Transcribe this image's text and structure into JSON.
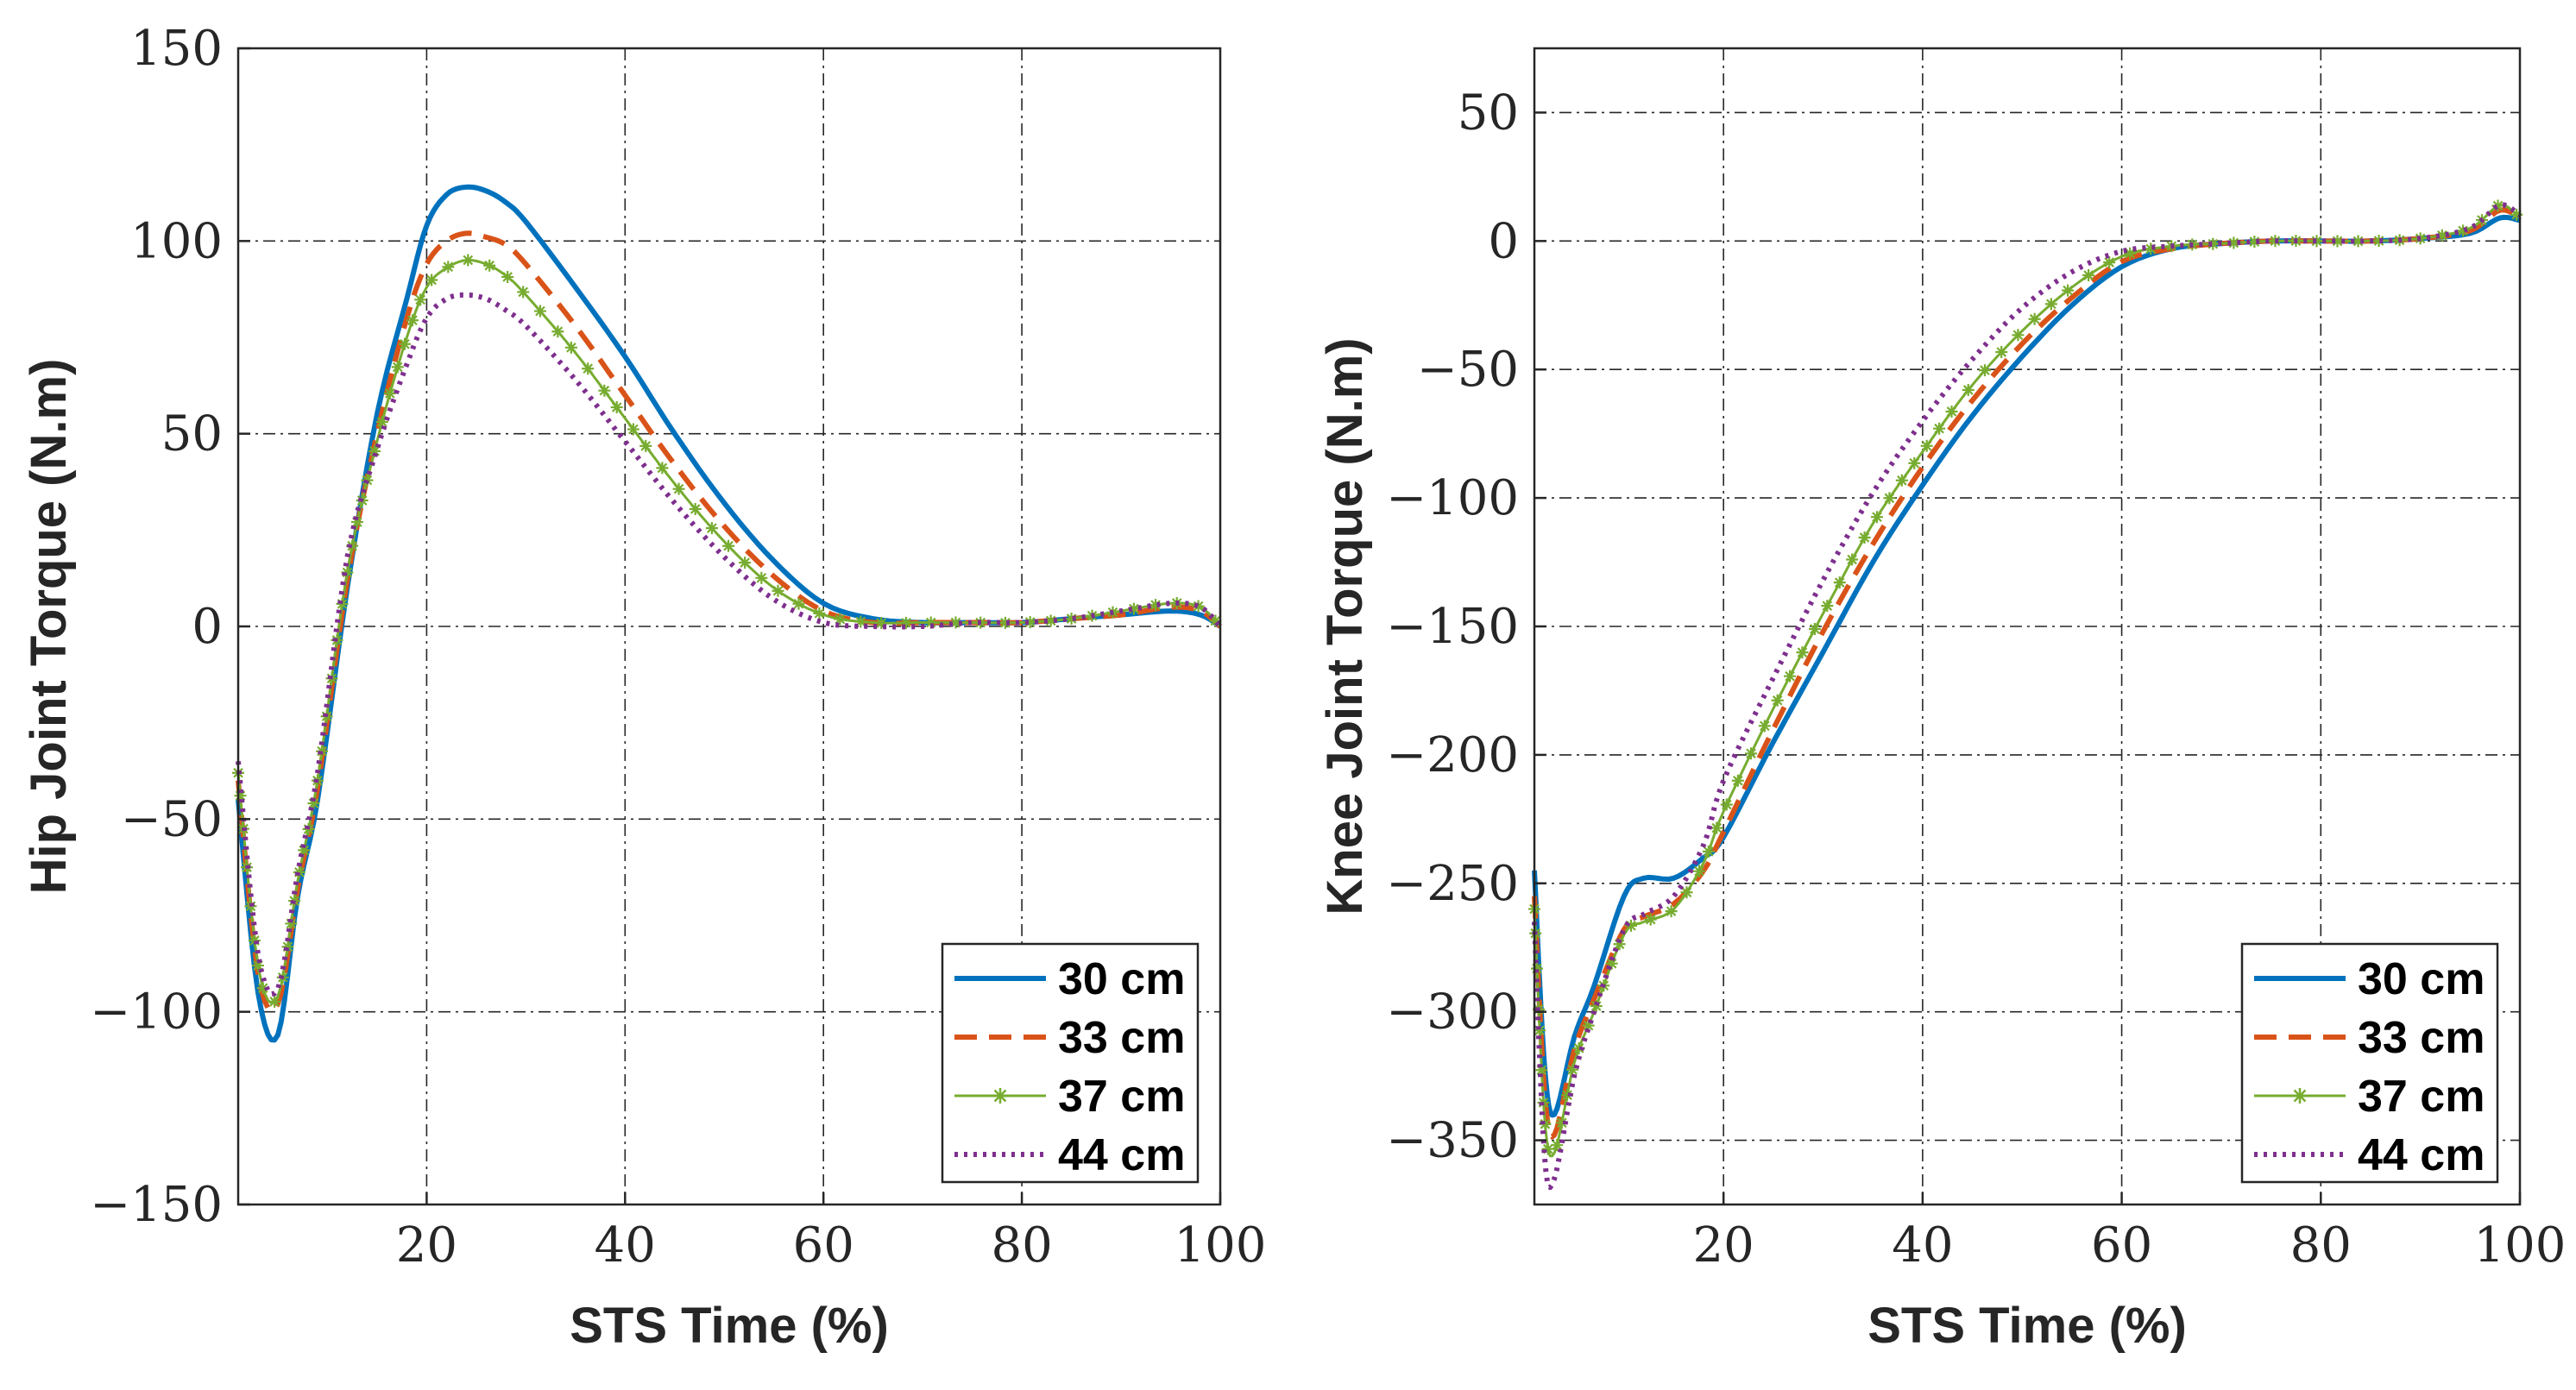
{
  "chart_data": [
    {
      "type": "line",
      "xlabel": "STS Time (%)",
      "ylabel": "Hip Joint Torque (N.m)",
      "xlim": [
        1,
        100
      ],
      "ylim": [
        -150,
        150
      ],
      "xticks": [
        20,
        40,
        60,
        80,
        100
      ],
      "yticks": [
        -150,
        -100,
        -50,
        0,
        50,
        100,
        150
      ],
      "ytick_labels": [
        "−150",
        "−100",
        "−50",
        "0",
        "50",
        "100",
        "150"
      ],
      "xtick_labels": [
        "20",
        "40",
        "60",
        "80",
        "100"
      ],
      "grid": true,
      "legend_position": "bottom-right",
      "series": [
        {
          "name": "30 cm",
          "color": "#0072BD",
          "style": "solid",
          "x": [
            1,
            3,
            5,
            7,
            9,
            12,
            15,
            18,
            20,
            22,
            24,
            26,
            28,
            30,
            35,
            40,
            45,
            50,
            55,
            60,
            65,
            70,
            75,
            80,
            85,
            90,
            95,
            98,
            100
          ],
          "y": [
            -45,
            -95,
            -106,
            -70,
            -45,
            10,
            55,
            85,
            104,
            112,
            114,
            113,
            110,
            105,
            88,
            70,
            50,
            32,
            17,
            6,
            2,
            1,
            1,
            1,
            2,
            3,
            4,
            3,
            0
          ]
        },
        {
          "name": "33 cm",
          "color": "#D95319",
          "style": "dashed",
          "x": [
            1,
            3,
            5,
            7,
            9,
            12,
            15,
            18,
            20,
            22,
            24,
            26,
            28,
            30,
            35,
            40,
            45,
            50,
            55,
            60,
            65,
            70,
            75,
            80,
            85,
            90,
            95,
            98,
            100
          ],
          "y": [
            -40,
            -90,
            -98,
            -68,
            -42,
            12,
            50,
            80,
            94,
            100,
            102,
            101,
            99,
            94,
            78,
            60,
            42,
            26,
            13,
            4,
            1,
            1,
            1,
            1,
            2,
            3,
            5,
            4,
            0
          ]
        },
        {
          "name": "37 cm",
          "color": "#77AC30",
          "style": "star",
          "x": [
            1,
            3,
            5,
            7,
            9,
            12,
            15,
            18,
            20,
            22,
            24,
            26,
            28,
            30,
            35,
            40,
            45,
            50,
            55,
            60,
            65,
            70,
            75,
            80,
            85,
            90,
            95,
            98,
            100
          ],
          "y": [
            -38,
            -88,
            -96,
            -66,
            -40,
            14,
            48,
            75,
            88,
            93,
            95,
            94,
            91,
            86,
            71,
            54,
            37,
            22,
            10,
            3,
            1,
            1,
            1,
            1,
            2,
            4,
            6,
            5,
            0
          ]
        },
        {
          "name": "44 cm",
          "color": "#7E2F8E",
          "style": "dotted",
          "x": [
            1,
            3,
            5,
            7,
            9,
            12,
            15,
            18,
            20,
            22,
            24,
            26,
            28,
            30,
            35,
            40,
            45,
            50,
            55,
            60,
            65,
            70,
            75,
            80,
            85,
            90,
            95,
            98,
            100
          ],
          "y": [
            -35,
            -85,
            -94,
            -64,
            -38,
            18,
            46,
            68,
            80,
            85,
            86,
            85,
            82,
            78,
            64,
            48,
            32,
            18,
            7,
            1,
            0,
            0,
            1,
            1,
            2,
            4,
            6,
            5,
            0
          ]
        }
      ]
    },
    {
      "type": "line",
      "xlabel": "STS Time (%)",
      "ylabel": "Knee Joint Torque (N.m)",
      "xlim": [
        1,
        100
      ],
      "ylim": [
        -375,
        75
      ],
      "xticks": [
        20,
        40,
        60,
        80,
        100
      ],
      "yticks": [
        -350,
        -300,
        -250,
        -200,
        -150,
        -100,
        -50,
        0,
        50
      ],
      "ytick_labels": [
        "−350",
        "−300",
        "−250",
        "−200",
        "−150",
        "−100",
        "−50",
        "0",
        "50"
      ],
      "xtick_labels": [
        "20",
        "40",
        "60",
        "80",
        "100"
      ],
      "grid": true,
      "legend_position": "bottom-right",
      "series": [
        {
          "name": "30 cm",
          "color": "#0072BD",
          "style": "solid",
          "x": [
            1,
            2,
            3,
            5,
            7,
            10,
            12,
            15,
            18,
            20,
            25,
            30,
            35,
            40,
            45,
            50,
            55,
            60,
            65,
            70,
            75,
            80,
            85,
            90,
            95,
            98,
            100
          ],
          "y": [
            -245,
            -320,
            -340,
            -310,
            -290,
            -255,
            -248,
            -248,
            -240,
            -232,
            -195,
            -160,
            -125,
            -95,
            -68,
            -45,
            -25,
            -10,
            -3,
            -1,
            0,
            0,
            0,
            1,
            3,
            9,
            8
          ]
        },
        {
          "name": "33 cm",
          "color": "#D95319",
          "style": "dashed",
          "x": [
            1,
            2,
            3,
            5,
            7,
            10,
            12,
            15,
            18,
            20,
            25,
            30,
            35,
            40,
            45,
            50,
            55,
            60,
            65,
            70,
            75,
            80,
            85,
            90,
            95,
            98,
            100
          ],
          "y": [
            -255,
            -330,
            -348,
            -315,
            -295,
            -268,
            -263,
            -258,
            -245,
            -230,
            -190,
            -152,
            -118,
            -88,
            -62,
            -40,
            -22,
            -8,
            -3,
            -1,
            0,
            0,
            0,
            1,
            4,
            12,
            9
          ]
        },
        {
          "name": "37 cm",
          "color": "#77AC30",
          "style": "star",
          "x": [
            1,
            2,
            3,
            5,
            7,
            10,
            12,
            15,
            18,
            20,
            25,
            30,
            35,
            40,
            45,
            50,
            55,
            60,
            65,
            70,
            75,
            80,
            85,
            90,
            95,
            98,
            100
          ],
          "y": [
            -260,
            -340,
            -355,
            -320,
            -300,
            -270,
            -265,
            -260,
            -242,
            -222,
            -182,
            -145,
            -110,
            -82,
            -56,
            -35,
            -18,
            -6,
            -2,
            -1,
            0,
            0,
            0,
            1,
            5,
            14,
            9
          ]
        },
        {
          "name": "44 cm",
          "color": "#7E2F8E",
          "style": "dotted",
          "x": [
            1,
            2,
            3,
            5,
            7,
            10,
            12,
            15,
            18,
            20,
            25,
            30,
            35,
            40,
            45,
            50,
            55,
            60,
            65,
            70,
            75,
            80,
            85,
            90,
            95,
            98,
            100
          ],
          "y": [
            -265,
            -355,
            -365,
            -325,
            -300,
            -268,
            -262,
            -255,
            -235,
            -210,
            -170,
            -132,
            -98,
            -70,
            -46,
            -26,
            -12,
            -4,
            -2,
            -1,
            0,
            0,
            0,
            1,
            5,
            14,
            10
          ]
        }
      ]
    }
  ]
}
